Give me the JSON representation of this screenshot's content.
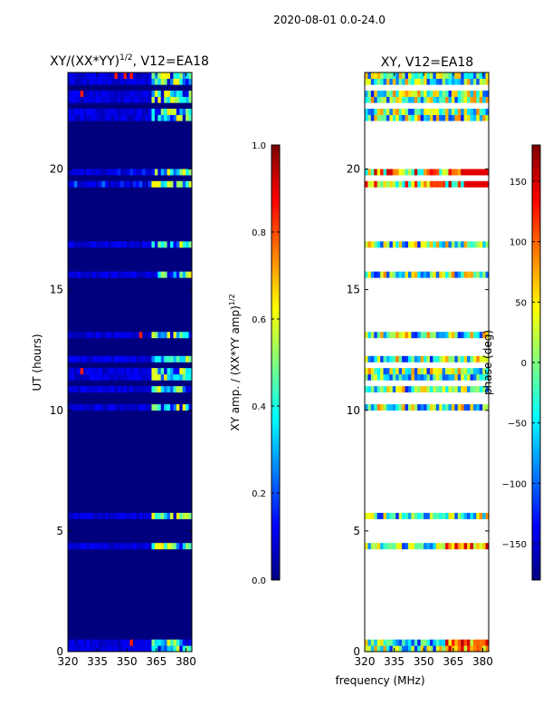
{
  "suptitle": "2020-08-01 0.0-24.0",
  "colors": {
    "background": "#ffffff",
    "gap": "#ffffff",
    "axis": "#000000",
    "colormap": [
      "#00007f",
      "#0000ff",
      "#007fff",
      "#00ffff",
      "#7fff7f",
      "#ffff00",
      "#ff7f00",
      "#ff0000",
      "#7f0000"
    ]
  },
  "chart_data": [
    {
      "type": "heatmap",
      "title": "XY/(XX*YY)",
      "title_sup": "1/2",
      "title_suffix": ", V12=EA18",
      "xlabel": "",
      "ylabel": "UT (hours)",
      "x_ticks": [
        320,
        335,
        350,
        365,
        380
      ],
      "y_ticks": [
        0,
        5,
        10,
        15,
        20
      ],
      "xlim": [
        320,
        383
      ],
      "ylim": [
        0,
        24
      ],
      "colorbar": {
        "label": "XY amp. / (XX*YY amp)",
        "label_sup": "1/2",
        "range": [
          0.0,
          1.0
        ],
        "ticks": [
          "0.0",
          "0.2",
          "0.4",
          "0.6",
          "0.8",
          "1.0"
        ],
        "tick_values": [
          0.0,
          0.2,
          0.4,
          0.6,
          0.8,
          1.0
        ]
      }
    },
    {
      "type": "heatmap",
      "title": "XY, V12=EA18",
      "xlabel": "frequency (MHz)",
      "ylabel": "",
      "x_ticks": [
        320,
        335,
        350,
        365,
        380
      ],
      "y_ticks": [
        0,
        5,
        10,
        15,
        20
      ],
      "xlim": [
        320,
        383
      ],
      "ylim": [
        0,
        24
      ],
      "colorbar": {
        "label": "phase (deg)",
        "range": [
          -180,
          180
        ],
        "ticks": [
          "−150",
          "−100",
          "−50",
          "0",
          "50",
          "100",
          "150"
        ],
        "tick_values": [
          -150,
          -100,
          -50,
          0,
          50,
          100,
          150
        ]
      }
    }
  ],
  "flagged_hours": [
    0.75,
    0.95,
    1.25,
    1.7,
    2.0,
    2.3,
    2.6,
    3.0,
    3.35,
    3.55,
    3.95,
    4.2,
    4.55,
    4.75,
    5.0,
    5.05,
    5.4,
    5.8,
    5.85,
    6.25,
    6.5,
    7.0,
    7.05,
    7.1,
    7.15,
    7.2,
    7.25,
    7.3,
    7.35,
    7.6,
    7.85,
    8.1,
    8.35,
    8.5,
    8.8,
    9.0,
    9.25,
    9.4,
    9.5,
    9.55,
    9.85,
    10.5,
    11.2,
    11.85,
    12.35,
    12.6,
    12.95,
    13.35,
    13.55,
    14.0,
    14.35,
    14.7,
    15.0,
    15.35,
    15.85,
    16.25,
    16.55,
    17.05,
    17.3,
    17.6,
    17.7,
    17.75,
    17.8,
    18.1,
    18.45,
    18.75,
    19.2,
    19.7,
    20.1,
    20.3,
    20.55,
    20.75,
    21.0,
    21.5,
    21.6,
    21.65,
    21.7,
    21.75,
    21.8,
    21.85,
    21.9,
    22.7,
    23.3
  ]
}
